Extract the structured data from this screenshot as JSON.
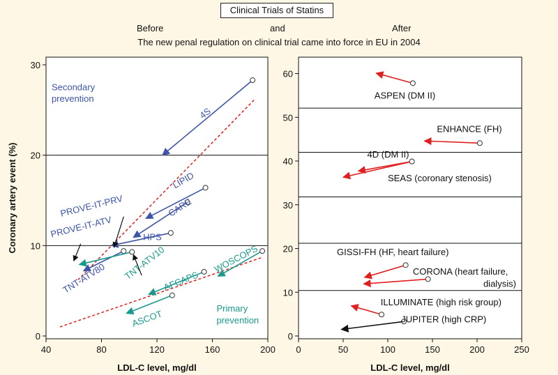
{
  "header": {
    "title": "Clinical Trials of Statins",
    "before": "Before",
    "and": "and",
    "after": "After",
    "subtitle": "The new penal regulation on clinical trial came into force in EU in 2004"
  },
  "colors": {
    "background": "#fef7e6",
    "secondary": "#3d54a8",
    "primary": "#1a9a8c",
    "red_arrow": "#e02020",
    "trend": "#e02020",
    "black": "#111111"
  },
  "chart_data": [
    {
      "type": "scatter",
      "panel": "left",
      "xlabel": "LDL-C level, mg/dl",
      "ylabel": "Coronary artery event (%)",
      "xlim": [
        40,
        200
      ],
      "ylim": [
        0,
        30
      ],
      "xticks": [
        40,
        80,
        120,
        160,
        200
      ],
      "yticks": [
        0,
        10,
        20,
        30
      ],
      "hlines": [
        10,
        20
      ],
      "annotations": [
        {
          "text": "Secondary",
          "x": 44,
          "y": 27.2,
          "color": "#3d54a8"
        },
        {
          "text": "prevention",
          "x": 44,
          "y": 25.9,
          "color": "#3d54a8"
        },
        {
          "text": "Primary",
          "x": 163,
          "y": 2.7,
          "color": "#1a9a8c"
        },
        {
          "text": "prevention",
          "x": 163,
          "y": 1.4,
          "color": "#1a9a8c"
        }
      ],
      "trend_lines": [
        {
          "x1": 63,
          "y1": 6.2,
          "x2": 190,
          "y2": 26.1
        },
        {
          "x1": 50,
          "y1": 1.0,
          "x2": 196,
          "y2": 8.7
        }
      ],
      "trials": [
        {
          "name": "4S",
          "group": "secondary",
          "x1": 189,
          "y1": 28.3,
          "x2": 124,
          "y2": 20.0,
          "lx": 153,
          "ly": 24.0,
          "rot": -38
        },
        {
          "name": "LIPID",
          "group": "secondary",
          "x1": 155,
          "y1": 16.4,
          "x2": 112,
          "y2": 13.0,
          "lx": 133,
          "ly": 16.3,
          "rot": -30
        },
        {
          "name": "CARE",
          "group": "secondary",
          "x1": 142,
          "y1": 14.8,
          "x2": 103,
          "y2": 10.9,
          "lx": 130,
          "ly": 13.2,
          "rot": -32
        },
        {
          "name": "HPS",
          "group": "secondary",
          "x1": 130,
          "y1": 11.4,
          "x2": 87,
          "y2": 10.0,
          "lx": 110,
          "ly": 10.6,
          "rot": 0
        },
        {
          "name": "TNT-ATV80",
          "group": "secondary",
          "x1": 96,
          "y1": 9.4,
          "x2": 67,
          "y2": 7.2,
          "lx": 54,
          "ly": 4.7,
          "rot": -32
        },
        {
          "name": "TNT-ATV10",
          "group": "primary",
          "x1": 102,
          "y1": 9.3,
          "x2": 64,
          "y2": 7.9,
          "lx": 99,
          "ly": 6.2,
          "rot": -38
        },
        {
          "name": "AFCAPS",
          "group": "primary",
          "x1": 154,
          "y1": 7.1,
          "x2": 114,
          "y2": 4.6,
          "lx": 126,
          "ly": 5.0,
          "rot": -22
        },
        {
          "name": "ASCOT",
          "group": "primary",
          "x1": 131,
          "y1": 4.5,
          "x2": 98,
          "y2": 2.5,
          "lx": 103,
          "ly": 1.0,
          "rot": -20
        },
        {
          "name": "WOSCOPS",
          "group": "primary",
          "x1": 196,
          "y1": 9.4,
          "x2": 164,
          "y2": 6.6,
          "lx": 163,
          "ly": 7.0,
          "rot": -28
        }
      ],
      "callouts": [
        {
          "name": "PROVE-IT-PRV",
          "x1": 96,
          "y1": 13.2,
          "x2": 89,
          "y2": 9.8,
          "lx": 51,
          "ly": 13.2
        },
        {
          "name": "PROVE-IT-ATV",
          "x1": 65,
          "y1": 10.2,
          "x2": 60,
          "y2": 8.3,
          "lx": 44,
          "ly": 10.9
        }
      ],
      "pointers": [
        {
          "x1": 109,
          "y1": 6.7,
          "x2": 103,
          "y2": 9.0
        }
      ]
    },
    {
      "type": "scatter",
      "panel": "right",
      "xlabel": "LDL-C level, mg/dl",
      "xlim": [
        0,
        250
      ],
      "ylim": [
        0,
        62
      ],
      "xticks": [
        0,
        50,
        100,
        150,
        200,
        250
      ],
      "yticks": [
        0,
        10,
        20,
        30,
        40,
        50,
        60
      ],
      "hlines": [
        10.4,
        21.2,
        31.8,
        42.0,
        52.1
      ],
      "trials": [
        {
          "name": "ASPEN (DM II)",
          "x1": 128,
          "y1": 57.8,
          "x2": 87,
          "y2": 60.1,
          "lx": 85,
          "ly": 54.3,
          "color": "#e02020"
        },
        {
          "name": "ENHANCE (FH)",
          "x1": 203,
          "y1": 44.1,
          "x2": 141,
          "y2": 44.6,
          "lx": 155,
          "ly": 46.6,
          "color": "#e02020"
        },
        {
          "name": "4D (DM II)",
          "x1": 127,
          "y1": 39.9,
          "x2": 67,
          "y2": 37.7,
          "lx": 77,
          "ly": 40.8,
          "color": "#e02020"
        },
        {
          "name": "SEAS (coronary stenosis)",
          "x1": 127,
          "y1": 39.9,
          "x2": 50,
          "y2": 36.3,
          "lx": 100,
          "ly": 35.4,
          "color": "#e02020"
        },
        {
          "name": "GISSI-FH (HF, heart failure)",
          "x1": 120,
          "y1": 16.2,
          "x2": 74,
          "y2": 13.4,
          "lx": 43,
          "ly": 18.5,
          "color": "#e02020"
        },
        {
          "name": "CORONA (heart failure,",
          "x1": 145,
          "y1": 13.0,
          "x2": 73,
          "y2": 11.9,
          "lx": 128,
          "ly": 14.0,
          "color": "#e02020"
        },
        {
          "name": "dialysis)",
          "lx": 207,
          "ly": 11.2
        },
        {
          "name": "ILLUMINATE (high risk group)",
          "x1": 93,
          "y1": 4.9,
          "x2": 59,
          "y2": 6.9,
          "lx": 92,
          "ly": 7.0,
          "color": "#e02020"
        },
        {
          "name": "JUPITER (high CRP)",
          "x1": 118,
          "y1": 3.3,
          "x2": 48,
          "y2": 1.5,
          "lx": 115,
          "ly": 3.1,
          "color": "#111111"
        }
      ]
    }
  ]
}
